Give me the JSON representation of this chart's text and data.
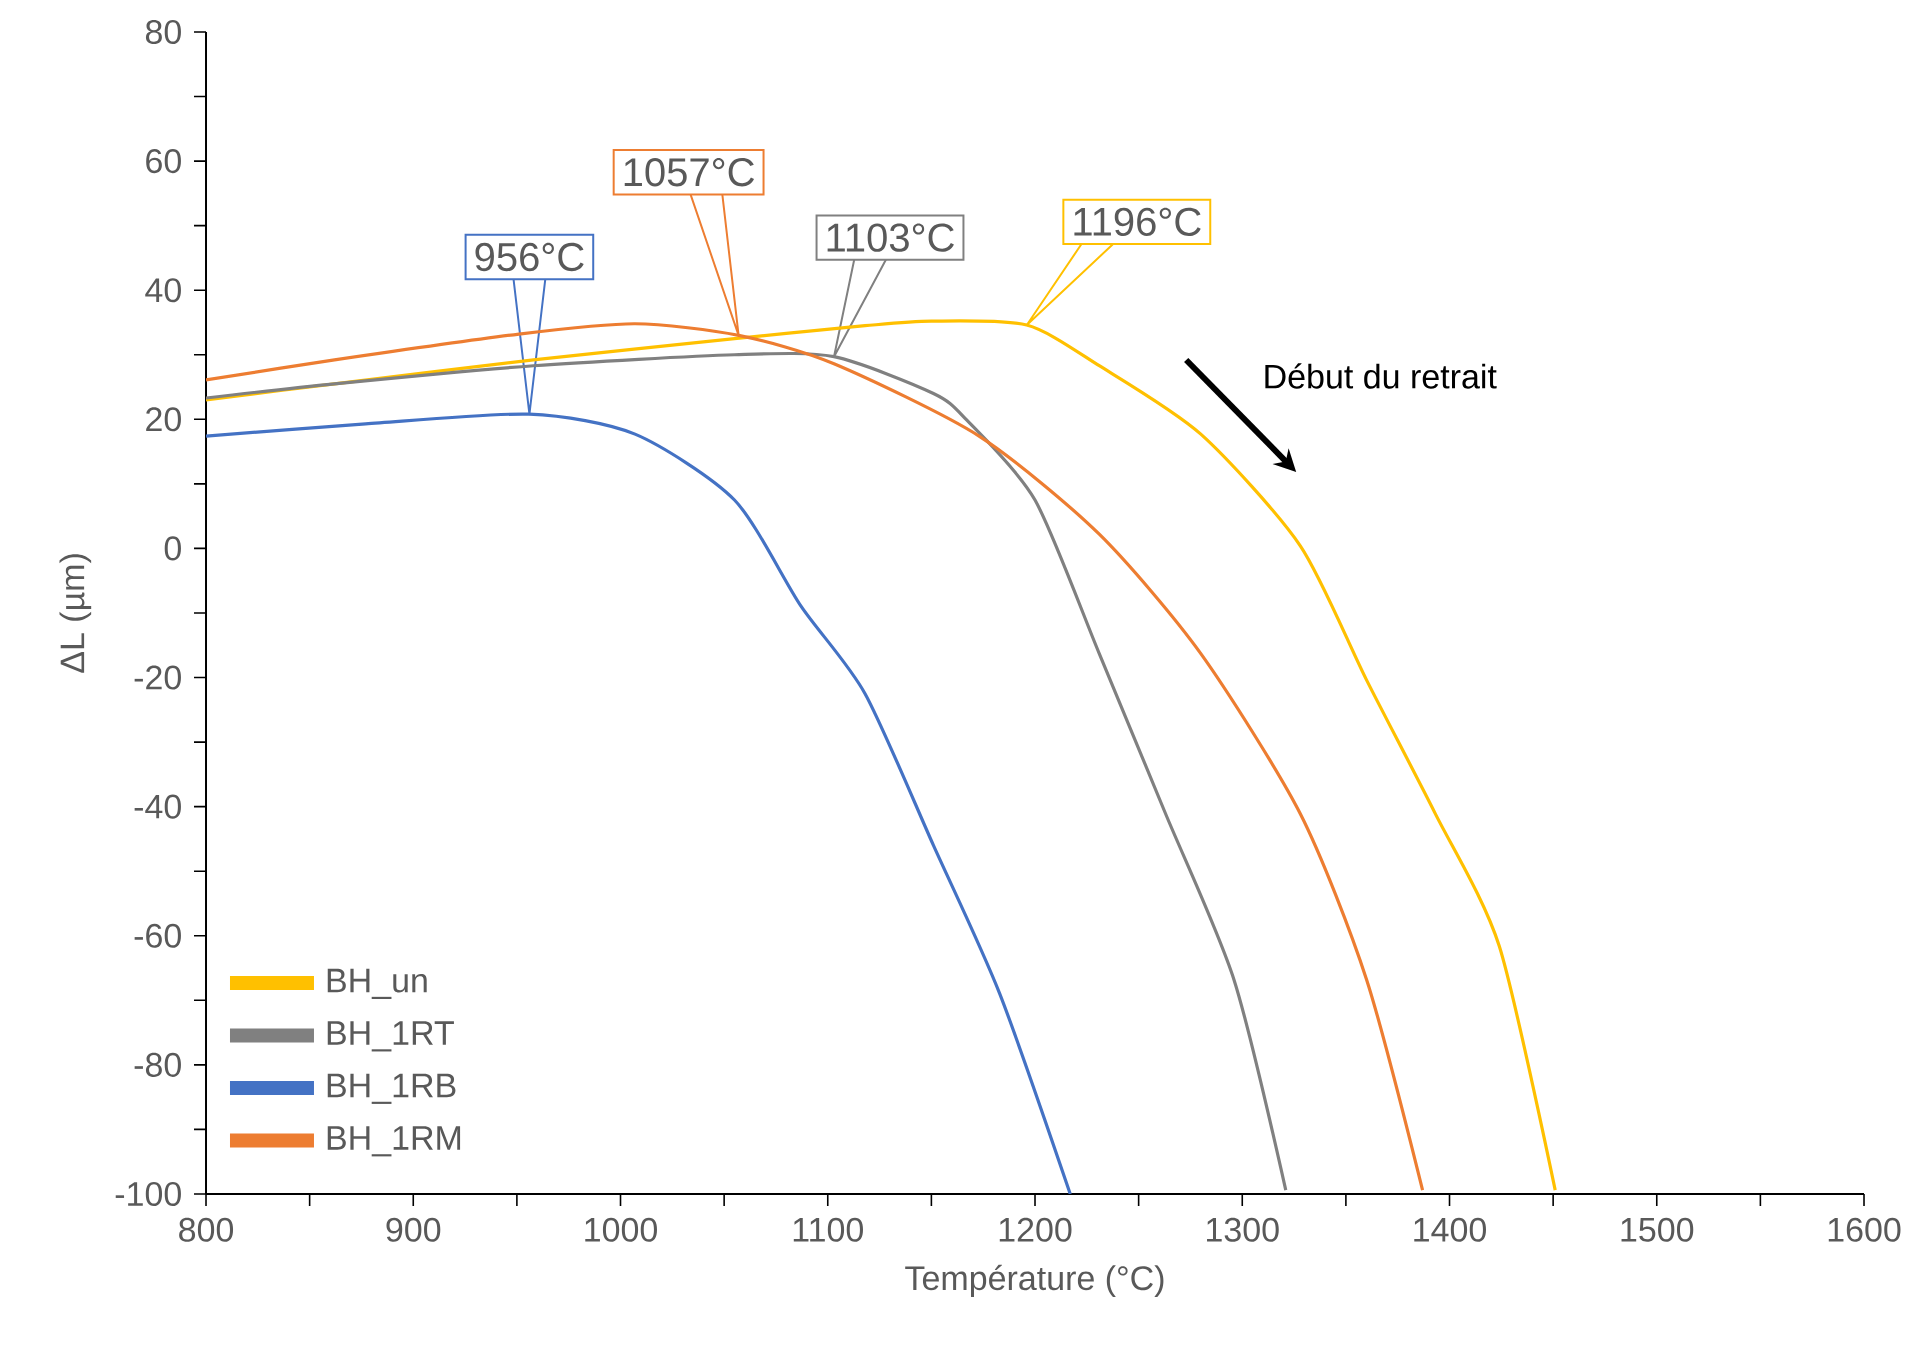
{
  "chart_data": {
    "type": "line",
    "xlabel": "Température (°C)",
    "ylabel": "ΔL (µm)",
    "xlim": [
      800,
      1600
    ],
    "xticks": [
      800,
      900,
      1000,
      1100,
      1200,
      1300,
      1400,
      1500,
      1600
    ],
    "ylim": [
      -100,
      80
    ],
    "yticks": [
      -100,
      -80,
      -60,
      -40,
      -20,
      0,
      20,
      40,
      60,
      80
    ],
    "grid": false,
    "legend": "bottom left",
    "marker": "none",
    "line_style": "solid",
    "series": [
      {
        "name": "BH_un",
        "color": "#ffc000",
        "x": [
          800,
          862,
          958,
          1055,
          1118,
          1150,
          1196,
          1231,
          1280,
          1328,
          1360,
          1393,
          1424,
          1451
        ],
        "values": [
          23,
          25.5,
          29.2,
          32.5,
          34.5,
          35.2,
          34.6,
          28.3,
          17.7,
          0.4,
          -20.4,
          -41,
          -61.6,
          -99.4
        ]
      },
      {
        "name": "BH_1RT",
        "color": "#808080",
        "x": [
          800,
          862,
          958,
          1055,
          1103,
          1151,
          1167,
          1200,
          1231,
          1263,
          1296,
          1321
        ],
        "values": [
          23.3,
          25.5,
          28.3,
          30,
          29.7,
          24,
          19.9,
          7.5,
          -16.3,
          -41.1,
          -66.8,
          -99.4
        ]
      },
      {
        "name": "BH_1RB",
        "color": "#4472c4",
        "x": [
          800,
          877,
          956,
          1007,
          1055,
          1087,
          1118,
          1151,
          1183,
          1217
        ],
        "values": [
          17.4,
          19.3,
          20.8,
          17.7,
          7.5,
          -8.9,
          -22.5,
          -46,
          -69,
          -100
        ]
      },
      {
        "name": "BH_1RM",
        "color": "#ed7d31",
        "x": [
          800,
          862,
          951,
          1007,
          1057,
          1103,
          1173,
          1231,
          1280,
          1328,
          1360,
          1387
        ],
        "values": [
          26.1,
          29.2,
          33.2,
          34.8,
          33,
          28.6,
          17.4,
          2.2,
          -16.3,
          -41.1,
          -66.8,
          -99.4
        ]
      }
    ],
    "annotations": [
      {
        "text": "1196°C",
        "x": 1196,
        "y": 34.6
      },
      {
        "text": "1103°C",
        "x": 1103,
        "y": 29.7
      },
      {
        "text": "956°C",
        "x": 956,
        "y": 20.8
      },
      {
        "text": "1057°C",
        "x": 1057,
        "y": 33
      },
      "Début du retrait"
    ]
  }
}
